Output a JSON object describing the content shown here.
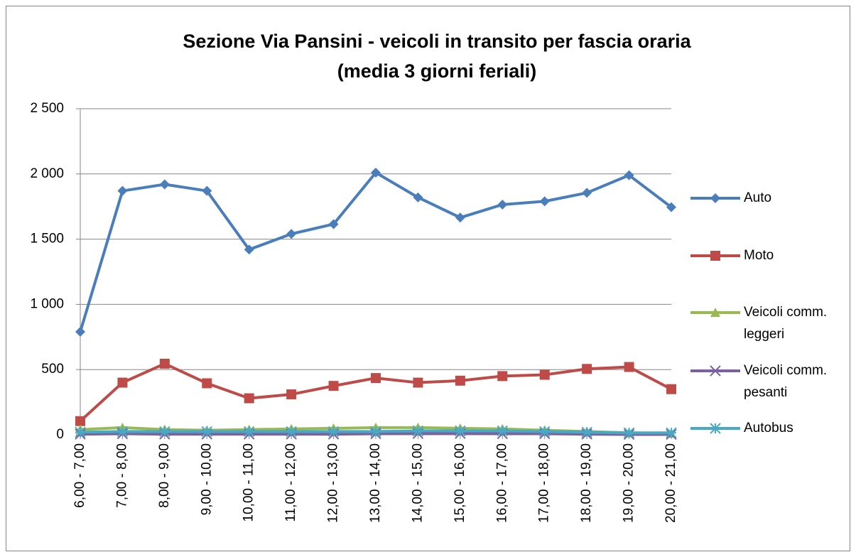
{
  "chart_data": {
    "type": "line",
    "title": [
      "Sezione Via Pansini - veicoli in transito per fascia oraria",
      "(media 3 giorni feriali)"
    ],
    "categories": [
      "6,00 - 7,00",
      "7,00 - 8,00",
      "8,00 - 9,00",
      "9,00 - 10,00",
      "10,00 - 11,00",
      "11,00 - 12,00",
      "12,00 - 13,00",
      "13,00 - 14,00",
      "14,00 - 15,00",
      "15,00 - 16,00",
      "16,00 - 17,00",
      "17,00 - 18,00",
      "18,00 - 19,00",
      "19,00 - 20,00",
      "20,00 - 21,00"
    ],
    "series": [
      {
        "name": "Auto",
        "color": "#4a7ebb",
        "marker": "diamond",
        "values": [
          790,
          1870,
          1920,
          1870,
          1420,
          1540,
          1615,
          2010,
          1820,
          1665,
          1765,
          1790,
          1855,
          1990,
          1745
        ]
      },
      {
        "name": "Moto",
        "color": "#be4b48",
        "marker": "square",
        "values": [
          105,
          400,
          545,
          395,
          280,
          310,
          375,
          435,
          400,
          415,
          450,
          460,
          505,
          520,
          350
        ]
      },
      {
        "name": "Veicoli comm. leggeri",
        "color": "#98b954",
        "marker": "triangle",
        "values": [
          40,
          55,
          40,
          35,
          40,
          45,
          50,
          55,
          55,
          50,
          45,
          35,
          25,
          15,
          10
        ]
      },
      {
        "name": "Veicoli comm. pesanti",
        "color": "#7d60a0",
        "marker": "x",
        "values": [
          5,
          8,
          5,
          5,
          5,
          5,
          5,
          8,
          10,
          10,
          8,
          8,
          5,
          3,
          3
        ]
      },
      {
        "name": "Autobus",
        "color": "#46aac5",
        "marker": "star",
        "values": [
          20,
          25,
          25,
          25,
          25,
          25,
          25,
          25,
          30,
          30,
          30,
          25,
          20,
          15,
          15
        ]
      }
    ],
    "ylim": [
      0,
      2500
    ],
    "yticks": [
      0,
      500,
      {
        "value": 1000,
        "label": "1 000"
      },
      {
        "value": 1500,
        "label": "1 500"
      },
      {
        "value": 2000,
        "label": "2 000"
      },
      {
        "value": 2500,
        "label": "2 500"
      }
    ],
    "grid": true,
    "legend": "right"
  }
}
